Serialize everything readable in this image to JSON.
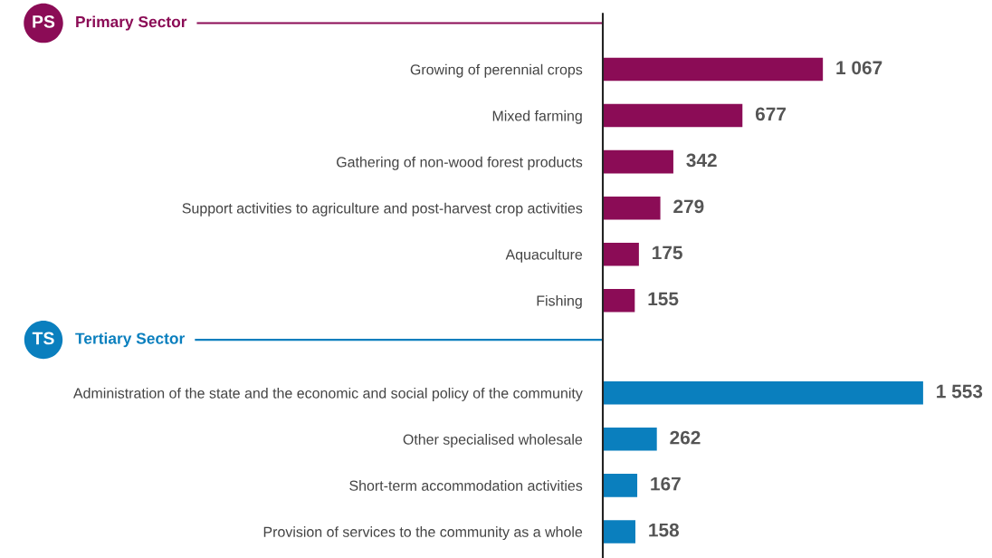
{
  "chart_data": {
    "type": "bar",
    "orientation": "horizontal",
    "categories": [
      "Growing of perennial crops",
      "Mixed farming",
      "Gathering of non-wood forest products",
      "Support activities to agriculture and post-harvest crop activities",
      "Aquaculture",
      "Fishing",
      null,
      "Administration of the state and the economic and social policy of the community",
      "Other specialised wholesale",
      "Short-term accommodation activities",
      "Provision of services to the community as a whole"
    ],
    "series": [
      {
        "name": "Primary Sector",
        "color": "#8b0c56",
        "values": [
          1067,
          677,
          342,
          279,
          175,
          155,
          null,
          null,
          null,
          null,
          null
        ],
        "value_labels": [
          "1 067",
          "677",
          "342",
          "279",
          "175",
          "155",
          null,
          null,
          null,
          null,
          null
        ]
      },
      {
        "name": "Tertiary Sector",
        "color": "#0a7fbe",
        "values": [
          null,
          null,
          null,
          null,
          null,
          null,
          null,
          1553,
          262,
          167,
          158
        ],
        "value_labels": [
          null,
          null,
          null,
          null,
          null,
          null,
          null,
          "1 553",
          "262",
          "167",
          "158"
        ]
      }
    ],
    "annotations": [
      "PS",
      "TS"
    ],
    "legend": false,
    "grid": false
  }
}
